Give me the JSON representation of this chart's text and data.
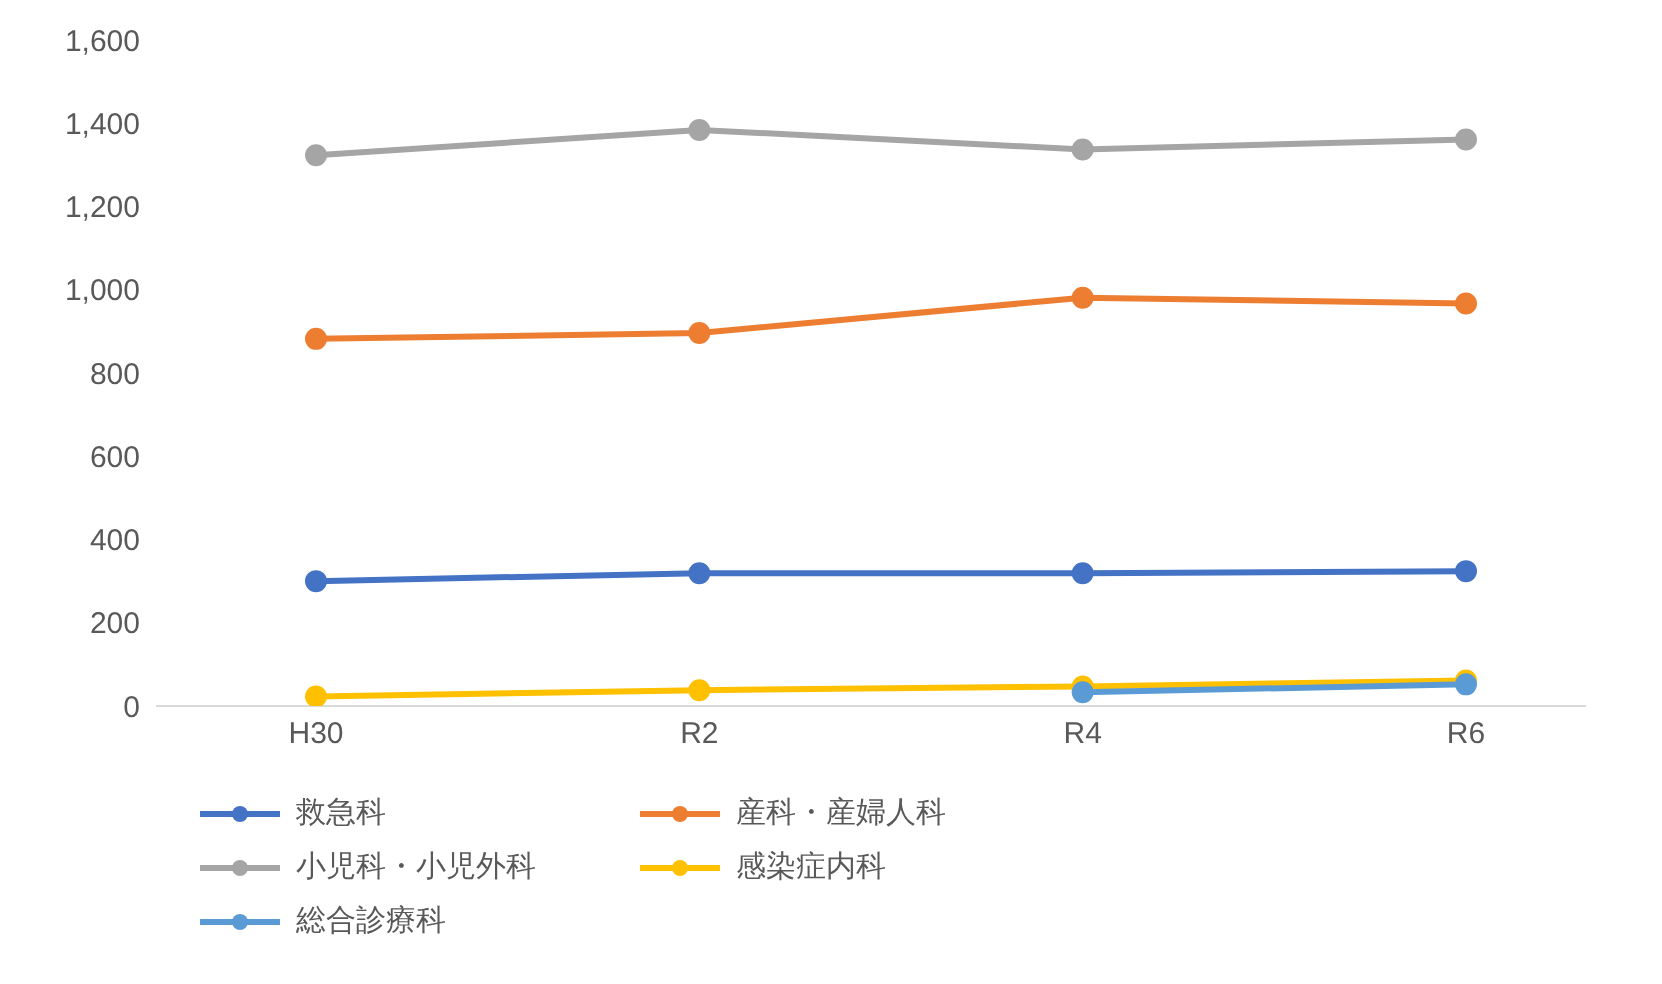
{
  "chart_data": {
    "type": "line",
    "categories": [
      "H30",
      "R2",
      "R4",
      "R6"
    ],
    "series": [
      {
        "name": "救急科",
        "color": "#4472c4",
        "values": [
          300,
          319,
          319,
          324
        ]
      },
      {
        "name": "産科・産婦人科",
        "color": "#ed7d31",
        "values": [
          882,
          896,
          981,
          967
        ]
      },
      {
        "name": "小児科・小児外科",
        "color": "#a5a5a5",
        "values": [
          1323,
          1384,
          1337,
          1361
        ]
      },
      {
        "name": "感染症内科",
        "color": "#ffc000",
        "values": [
          23,
          38,
          47,
          61
        ]
      },
      {
        "name": "総合診療科",
        "color": "#5b9bd5",
        "values": [
          null,
          null,
          33,
          52
        ]
      }
    ],
    "ylim": [
      0,
      1600
    ],
    "yticks": [
      {
        "value": 0,
        "label": "0"
      },
      {
        "value": 200,
        "label": "200"
      },
      {
        "value": 400,
        "label": "400"
      },
      {
        "value": 600,
        "label": "600"
      },
      {
        "value": 800,
        "label": "800"
      },
      {
        "value": 1000,
        "label": "1,000"
      },
      {
        "value": 1200,
        "label": "1,200"
      },
      {
        "value": 1400,
        "label": "1,400"
      },
      {
        "value": 1600,
        "label": "1,600"
      }
    ],
    "grid": false,
    "legend": "bottom",
    "marker": "circle",
    "line_style": "solid"
  }
}
